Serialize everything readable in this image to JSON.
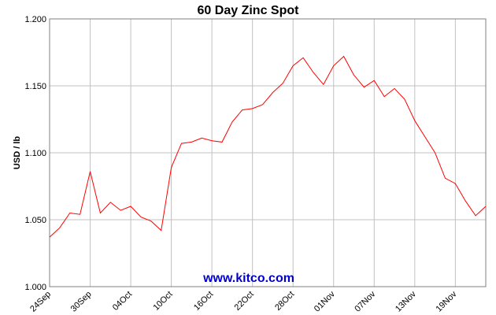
{
  "chart_data": {
    "type": "line",
    "title": "60 Day Zinc Spot",
    "xlabel": "",
    "ylabel": "USD / lb",
    "watermark": "www.kitco.com",
    "ylim": [
      1.0,
      1.2
    ],
    "yticks": [
      "1.000",
      "1.050",
      "1.100",
      "1.150",
      "1.200"
    ],
    "grid": true,
    "legend": "none",
    "x_tick_labels": [
      "24Sep",
      "30Sep",
      "04Oct",
      "10Oct",
      "16Oct",
      "22Oct",
      "28Oct",
      "01Nov",
      "07Nov",
      "13Nov",
      "19Nov"
    ],
    "x_tick_indices": [
      0,
      4,
      8,
      12,
      16,
      20,
      24,
      28,
      32,
      36,
      40
    ],
    "series": [
      {
        "values": [
          1.037,
          1.044,
          1.055,
          1.054,
          1.086,
          1.055,
          1.063,
          1.057,
          1.06,
          1.052,
          1.049,
          1.042,
          1.089,
          1.107,
          1.108,
          1.111,
          1.109,
          1.108,
          1.123,
          1.132,
          1.133,
          1.136,
          1.145,
          1.152,
          1.165,
          1.171,
          1.16,
          1.151,
          1.165,
          1.172,
          1.158,
          1.149,
          1.154,
          1.142,
          1.148,
          1.14,
          1.124,
          1.112,
          1.1,
          1.081,
          1.077,
          1.064,
          1.053,
          1.06
        ]
      }
    ],
    "colors": {
      "line": "#ff0000",
      "grid": "#c0c0c0",
      "watermark": "#0000cc",
      "frame": "#808080"
    }
  }
}
